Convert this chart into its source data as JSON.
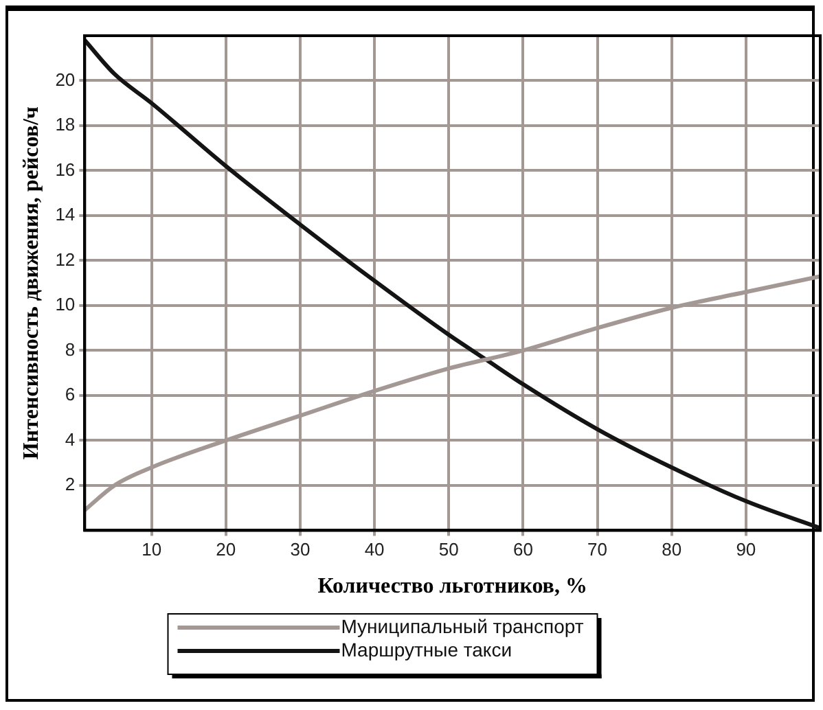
{
  "chart_data": {
    "type": "line",
    "xlabel": "Количество льготников, %",
    "ylabel": "Интенсивность движения, рейсов/ч",
    "xlim": [
      1,
      100
    ],
    "xticks": [
      10,
      20,
      30,
      40,
      50,
      60,
      70,
      80,
      90
    ],
    "ylim": [
      0,
      22
    ],
    "yticks": [
      2,
      4,
      6,
      8,
      10,
      12,
      14,
      16,
      18,
      20
    ],
    "grid": true,
    "legend": "bottom",
    "marker": "none",
    "line_style": "solid",
    "series": [
      {
        "name": "Муниципальный транспорт",
        "color": "#a39894",
        "x": [
          1,
          5,
          10,
          20,
          30,
          40,
          50,
          60,
          70,
          80,
          90,
          100
        ],
        "values": [
          0.9,
          2.0,
          2.8,
          4.0,
          5.1,
          6.2,
          7.2,
          8.0,
          9.0,
          9.9,
          10.6,
          11.3
        ]
      },
      {
        "name": "Маршрутные такси",
        "color": "#141414",
        "x": [
          1,
          5,
          10,
          20,
          30,
          40,
          50,
          55,
          60,
          70,
          80,
          90,
          100
        ],
        "values": [
          21.8,
          20.3,
          19.0,
          16.2,
          13.6,
          11.1,
          8.7,
          7.6,
          6.5,
          4.5,
          2.8,
          1.3,
          0.1
        ]
      }
    ]
  }
}
